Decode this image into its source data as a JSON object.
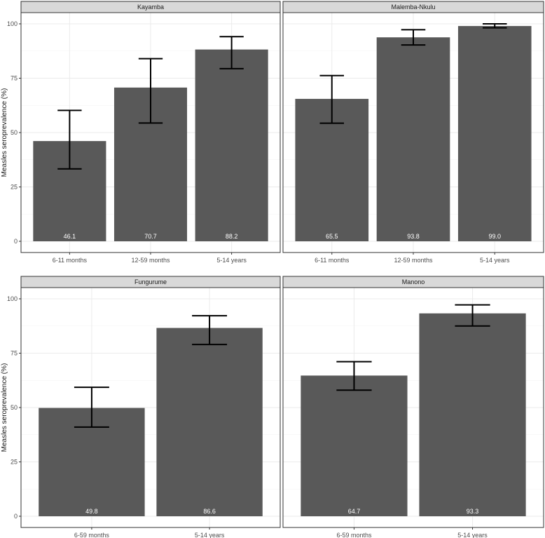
{
  "colors": {
    "bar": "#595959",
    "strip": "#d9d9d9",
    "grid": "#ebebeb",
    "panel_border": "#333333",
    "label_on_bar": "#ffffff",
    "errorbar": "#000000"
  },
  "chart_data": [
    {
      "type": "bar",
      "title": "Kayamba",
      "ylabel": "Measles seroprevalence (%)",
      "ylim": [
        0,
        100
      ],
      "yticks": [
        0,
        25,
        50,
        75,
        100
      ],
      "grid": true,
      "categories": [
        "6-11 months",
        "12-59 months",
        "5-14 years"
      ],
      "values": [
        46.1,
        70.7,
        88.2
      ],
      "labels": [
        "46.1",
        "70.7",
        "88.2"
      ],
      "ci_lower": [
        33.3,
        54.4,
        79.4
      ],
      "ci_upper": [
        60.2,
        84.0,
        94.1
      ]
    },
    {
      "type": "bar",
      "title": "Malemba-Nkulu",
      "ylabel": "",
      "ylim": [
        0,
        100
      ],
      "yticks": [
        0,
        25,
        50,
        75,
        100
      ],
      "grid": true,
      "categories": [
        "6-11 months",
        "12-59 months",
        "5-14 years"
      ],
      "values": [
        65.5,
        93.8,
        99.0
      ],
      "labels": [
        "65.5",
        "93.8",
        "99.0"
      ],
      "ci_lower": [
        54.3,
        90.3,
        98.2
      ],
      "ci_upper": [
        76.2,
        97.3,
        100.0
      ]
    },
    {
      "type": "bar",
      "title": "Fungurume",
      "ylabel": "Measles seroprevalence (%)",
      "ylim": [
        0,
        100
      ],
      "yticks": [
        0,
        25,
        50,
        75,
        100
      ],
      "grid": true,
      "categories": [
        "6-59 months",
        "5-14 years"
      ],
      "values": [
        49.8,
        86.6
      ],
      "labels": [
        "49.8",
        "86.6"
      ],
      "ci_lower": [
        41.0,
        79.0
      ],
      "ci_upper": [
        59.3,
        92.2
      ]
    },
    {
      "type": "bar",
      "title": "Manono",
      "ylabel": "",
      "ylim": [
        0,
        100
      ],
      "yticks": [
        0,
        25,
        50,
        75,
        100
      ],
      "grid": true,
      "categories": [
        "6-59 months",
        "5-14 years"
      ],
      "values": [
        64.7,
        93.3
      ],
      "labels": [
        "64.7",
        "93.3"
      ],
      "ci_lower": [
        58.0,
        87.5
      ],
      "ci_upper": [
        71.1,
        97.2
      ]
    }
  ]
}
